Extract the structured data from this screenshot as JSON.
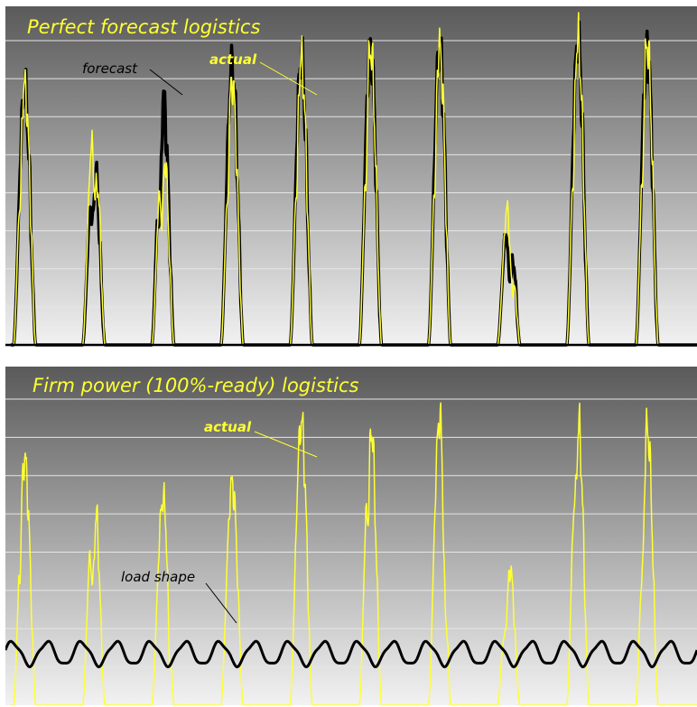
{
  "colors": {
    "actual": "#ffff33",
    "forecast": "#000000",
    "load": "#000000",
    "title": "#ffff33",
    "gridline": "#e6e6e6",
    "background_top": "#5a5a5a",
    "background_bottom": "#f2f2f2"
  },
  "chart_data": [
    {
      "type": "line",
      "title": "Perfect forecast logistics",
      "xlabel": "",
      "ylabel": "",
      "grid": true,
      "legend": "none",
      "ylim": [
        0,
        8
      ],
      "x_units": "days",
      "days": 10,
      "daily_actual_peaks": [
        6.8,
        6.2,
        5.5,
        6.9,
        7.5,
        7.8,
        7.8,
        4.0,
        8.0,
        7.9
      ],
      "daily_forecast_peaks": [
        6.7,
        5.2,
        6.6,
        7.3,
        7.5,
        7.8,
        7.8,
        3.9,
        8.0,
        7.8
      ],
      "series": [
        {
          "name": "forecast",
          "kind": "forecast"
        },
        {
          "name": "actual",
          "kind": "actual"
        }
      ],
      "annotations": [
        {
          "text": "forecast",
          "target": "forecast"
        },
        {
          "text": "actual",
          "target": "actual"
        }
      ]
    },
    {
      "type": "line",
      "title": "Firm power (100%-ready) logistics",
      "xlabel": "",
      "ylabel": "",
      "grid": true,
      "legend": "none",
      "ylim": [
        0,
        8
      ],
      "x_units": "days",
      "days": 10,
      "daily_actual_peaks": [
        6.4,
        5.9,
        5.4,
        5.8,
        7.4,
        7.5,
        7.5,
        3.9,
        7.6,
        7.3
      ],
      "load_shape": {
        "mean": 1.35,
        "amplitude": 0.3,
        "cycles_per_day": 2
      },
      "series": [
        {
          "name": "load shape",
          "kind": "load"
        },
        {
          "name": "actual",
          "kind": "actual"
        }
      ],
      "annotations": [
        {
          "text": "actual",
          "target": "actual"
        },
        {
          "text": "load shape",
          "target": "load"
        }
      ]
    }
  ]
}
